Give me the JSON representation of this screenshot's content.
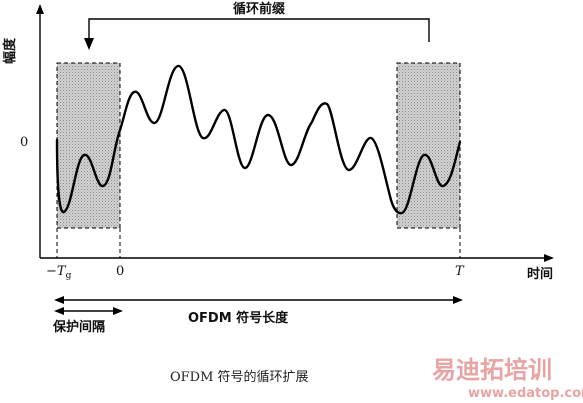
{
  "diagram": {
    "y_axis_label": "幅度",
    "x_axis_label": "时间",
    "y_zero_label": "0",
    "tick_neg_tg_main": "−T",
    "tick_neg_tg_sub": "g",
    "tick_zero": "0",
    "tick_T": "T",
    "cyclic_prefix_label": "循环前缀",
    "symbol_length_label": "OFDM 符号长度",
    "guard_interval_label": "保护间隔",
    "caption": "OFDM 符号的循环扩展"
  },
  "watermark": {
    "text_cn": "易迪拓培训",
    "url": "www.edatop.com"
  },
  "colors": {
    "shade": "#c8c8c8",
    "line": "#000000",
    "watermark": "#e8a3a3"
  }
}
